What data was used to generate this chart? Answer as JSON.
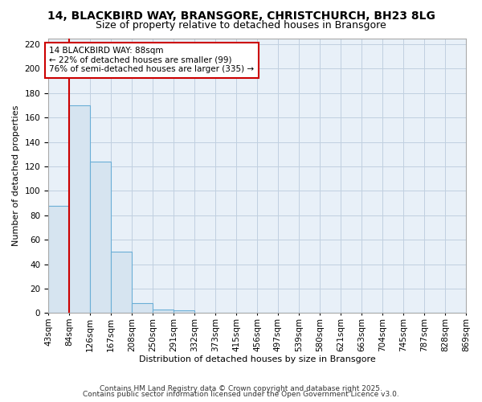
{
  "title1": "14, BLACKBIRD WAY, BRANSGORE, CHRISTCHURCH, BH23 8LG",
  "title2": "Size of property relative to detached houses in Bransgore",
  "xlabel": "Distribution of detached houses by size in Bransgore",
  "ylabel": "Number of detached properties",
  "bins": [
    43,
    84,
    126,
    167,
    208,
    250,
    291,
    332,
    373,
    415,
    456,
    497,
    539,
    580,
    621,
    663,
    704,
    745,
    787,
    828,
    869
  ],
  "counts": [
    88,
    170,
    124,
    50,
    8,
    3,
    2,
    0,
    0,
    0,
    0,
    0,
    0,
    0,
    0,
    0,
    0,
    0,
    0,
    0
  ],
  "bar_facecolor": "#d6e4f0",
  "bar_edgecolor": "#6aaed6",
  "plot_bg_color": "#e8f0f8",
  "grid_color": "#c0d0e0",
  "vline_x": 84,
  "vline_color": "#cc0000",
  "annotation_text": "14 BLACKBIRD WAY: 88sqm\n← 22% of detached houses are smaller (99)\n76% of semi-detached houses are larger (335) →",
  "annotation_box_color": "#cc0000",
  "ylim": [
    0,
    225
  ],
  "yticks": [
    0,
    20,
    40,
    60,
    80,
    100,
    120,
    140,
    160,
    180,
    200,
    220
  ],
  "footer1": "Contains HM Land Registry data © Crown copyright and database right 2025.",
  "footer2": "Contains public sector information licensed under the Open Government Licence v3.0.",
  "bg_color": "#ffffff",
  "title1_fontsize": 10,
  "title2_fontsize": 9,
  "axis_label_fontsize": 8,
  "tick_fontsize": 7.5,
  "annotation_fontsize": 7.5,
  "footer_fontsize": 6.5
}
